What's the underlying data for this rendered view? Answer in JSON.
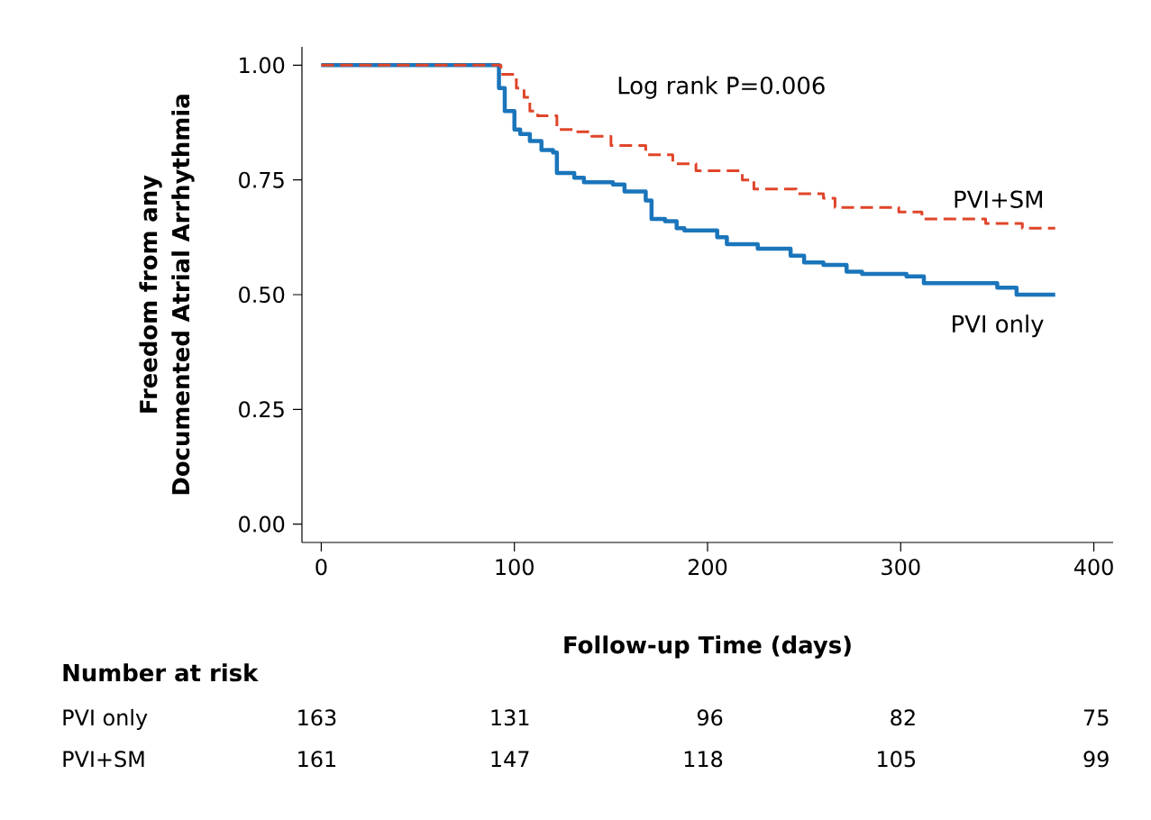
{
  "chart_data": {
    "type": "step",
    "xlabel": "Follow-up Time (days)",
    "ylabel": "Freedom from any Documented Atrial Arrhythmia",
    "xlim": [
      -10,
      410
    ],
    "ylim": [
      -0.04,
      1.04
    ],
    "xticks": [
      0,
      100,
      200,
      300,
      400
    ],
    "yticks": [
      {
        "value": 0,
        "label": "0.00"
      },
      {
        "value": 0.25,
        "label": "0.25"
      },
      {
        "value": 0.5,
        "label": "0.50"
      },
      {
        "value": 0.75,
        "label": "0.75"
      },
      {
        "value": 1,
        "label": "1.00"
      }
    ],
    "grid": false,
    "legend": false,
    "marker": "none",
    "series": [
      {
        "name": "PVI only",
        "color": "#1a75bb",
        "line_style": "solid",
        "x": [
          0,
          92,
          95,
          100,
          103,
          108,
          114,
          120,
          122,
          131,
          136,
          151,
          157,
          168,
          171,
          178,
          184,
          188,
          205,
          210,
          226,
          243,
          250,
          260,
          272,
          280,
          303,
          312,
          350,
          360,
          380
        ],
        "values": [
          1.0,
          0.95,
          0.9,
          0.86,
          0.85,
          0.835,
          0.815,
          0.81,
          0.765,
          0.755,
          0.745,
          0.74,
          0.725,
          0.705,
          0.665,
          0.66,
          0.645,
          0.64,
          0.625,
          0.61,
          0.6,
          0.585,
          0.57,
          0.565,
          0.55,
          0.545,
          0.54,
          0.525,
          0.515,
          0.5,
          0.5
        ]
      },
      {
        "name": "PVI+SM",
        "color": "#e0452a",
        "line_style": "dashed",
        "x": [
          0,
          93,
          101,
          105,
          108,
          112,
          122,
          132,
          140,
          150,
          168,
          182,
          194,
          218,
          224,
          246,
          260,
          266,
          299,
          311,
          344,
          363,
          380
        ],
        "values": [
          1.0,
          0.98,
          0.95,
          0.93,
          0.9,
          0.89,
          0.86,
          0.855,
          0.845,
          0.825,
          0.805,
          0.785,
          0.77,
          0.75,
          0.73,
          0.72,
          0.71,
          0.69,
          0.68,
          0.665,
          0.655,
          0.645,
          0.645
        ]
      }
    ],
    "annotations": [
      "Log rank P=0.006",
      "Number at risk",
      "PVI only",
      "163",
      "131",
      "96",
      "82",
      "75",
      "PVI+SM",
      "161",
      "147",
      "118",
      "105",
      "99"
    ]
  }
}
